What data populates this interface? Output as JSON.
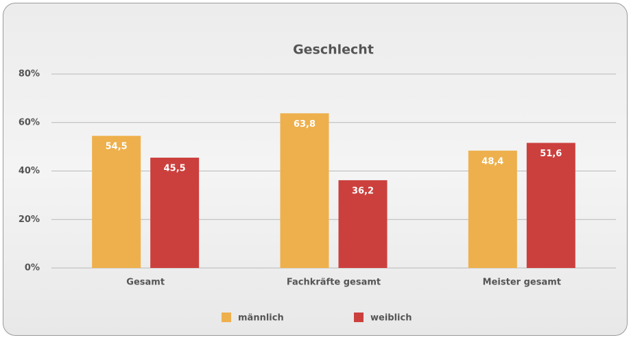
{
  "chart_data": {
    "type": "bar",
    "title": "Geschlecht",
    "categories": [
      "Gesamt",
      "Fachkräfte gesamt",
      "Meister gesamt"
    ],
    "series": [
      {
        "name": "männlich",
        "color": "#eeb04c",
        "values": [
          54.5,
          63.8,
          48.4
        ],
        "value_labels": [
          "54,5",
          "63,8",
          "48,4"
        ]
      },
      {
        "name": "weiblich",
        "color": "#cb403d",
        "values": [
          45.5,
          36.2,
          51.6
        ],
        "value_labels": [
          "45,5",
          "36,2",
          "51,6"
        ]
      }
    ],
    "ylim": [
      0,
      80
    ],
    "yticks": [
      {
        "value": 0,
        "label": "0%"
      },
      {
        "value": 20,
        "label": "20%"
      },
      {
        "value": 40,
        "label": "40%"
      },
      {
        "value": 60,
        "label": "60%"
      },
      {
        "value": 80,
        "label": "80%"
      }
    ],
    "grid": true,
    "legend": "bottom"
  }
}
